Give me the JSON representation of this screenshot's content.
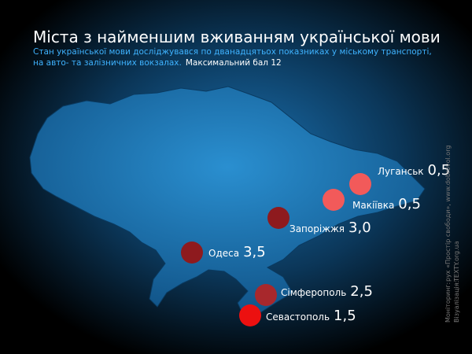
{
  "header": {
    "title": "Міста з найменшим вживанням української мови",
    "subtitle": "Стан української мови досліджувався по дванадцятьох показниках у міському транспорті,",
    "subtitle_2": "на авто- та залізничних вокзалах.",
    "note": "Максимальний бал 12"
  },
  "cities": [
    {
      "name": "Луганськ",
      "score": {
        "value": 0.5,
        "label": "0,5"
      },
      "color": "#f25a5a"
    },
    {
      "name": "Макіївка",
      "score": {
        "value": 0.5,
        "label": "0,5"
      },
      "color": "#f25a5a"
    },
    {
      "name": "Запоріжжя",
      "score": {
        "value": 3.0,
        "label": "3,0"
      },
      "color": "#8e1a1e"
    },
    {
      "name": "Одеса",
      "score": {
        "value": 3.5,
        "label": "3,5"
      },
      "color": "#8e1a1e"
    },
    {
      "name": "Сімферополь",
      "score": {
        "value": 2.5,
        "label": "2,5"
      },
      "color": "#a8282c"
    },
    {
      "name": "Севастополь",
      "score": {
        "value": 1.5,
        "label": "1,5"
      },
      "color": "#ec1010"
    }
  ],
  "credits": {
    "monitoring_label": "Моніторинг:",
    "monitoring": "рух «Простір свободи», www.dobrovol.org",
    "visualization_label": "Візуалізація:",
    "visualization": "TEXTY.org.ua"
  }
}
